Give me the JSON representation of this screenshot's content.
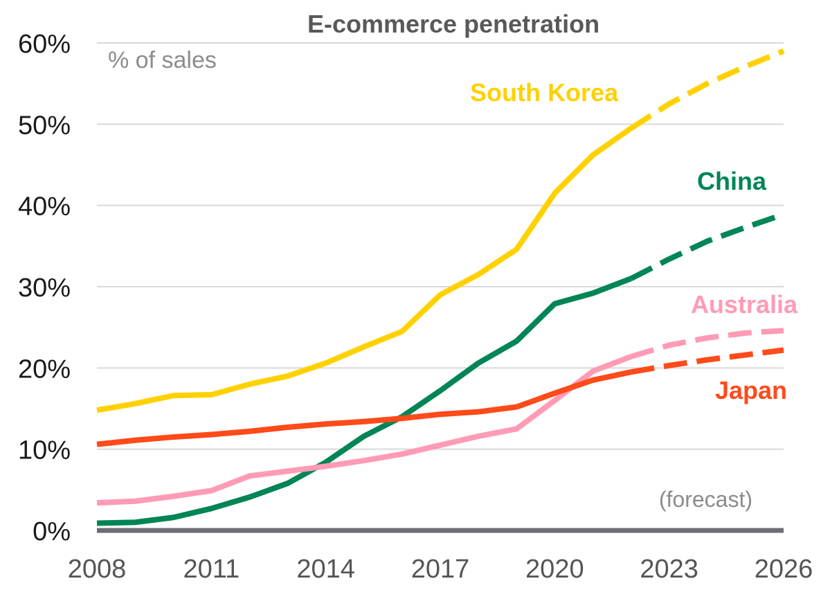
{
  "chart_data": {
    "type": "line",
    "title": "E-commerce penetration",
    "unit_label": "% of sales",
    "annotation": "(forecast)",
    "forecast_from": 2022,
    "x": [
      2008,
      2009,
      2010,
      2011,
      2012,
      2013,
      2014,
      2015,
      2016,
      2017,
      2018,
      2019,
      2020,
      2021,
      2022,
      2023,
      2024,
      2025,
      2026
    ],
    "x_ticks": [
      "2008",
      "2011",
      "2014",
      "2017",
      "2020",
      "2023",
      "2026"
    ],
    "y_ticks": [
      "0%",
      "10%",
      "20%",
      "30%",
      "40%",
      "50%",
      "60%"
    ],
    "ylim": [
      0,
      60
    ],
    "xlim": [
      2008,
      2026
    ],
    "grid": true,
    "series": [
      {
        "name": "South Korea",
        "color": "#FFD100",
        "values": [
          14.8,
          15.6,
          16.6,
          16.7,
          18.0,
          19.0,
          20.6,
          22.6,
          24.5,
          29.0,
          31.5,
          34.6,
          41.5,
          46.2,
          49.5,
          52.5,
          55.0,
          57.1,
          59.0
        ]
      },
      {
        "name": "China",
        "color": "#008555",
        "values": [
          0.9,
          1.0,
          1.6,
          2.7,
          4.1,
          5.8,
          8.4,
          11.6,
          14.0,
          17.2,
          20.6,
          23.3,
          27.9,
          29.2,
          31.0,
          33.4,
          35.6,
          37.3,
          38.9
        ]
      },
      {
        "name": "Australia",
        "color": "#FF9BB5",
        "values": [
          3.4,
          3.6,
          4.2,
          4.9,
          6.7,
          7.3,
          7.9,
          8.6,
          9.4,
          10.5,
          11.6,
          12.5,
          16.0,
          19.6,
          21.4,
          22.8,
          23.7,
          24.3,
          24.6
        ]
      },
      {
        "name": "Japan",
        "color": "#FF4A1A",
        "values": [
          10.6,
          11.1,
          11.5,
          11.8,
          12.2,
          12.7,
          13.1,
          13.4,
          13.8,
          14.3,
          14.6,
          15.2,
          16.9,
          18.5,
          19.5,
          20.3,
          21.0,
          21.6,
          22.2
        ]
      }
    ]
  }
}
